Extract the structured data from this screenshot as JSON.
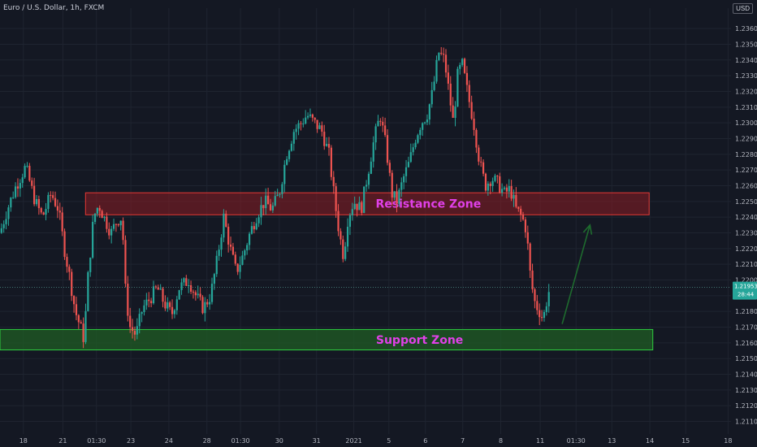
{
  "header": {
    "symbol": "Euro / U.S. Dollar, 1h, FXCM",
    "currency": "USD"
  },
  "colors": {
    "background": "#141823",
    "grid": "#1f2430",
    "up_candle": "#26a69a",
    "down_candle": "#ef5350",
    "resistance_fill": "#8b1e24",
    "resistance_border": "#e53935",
    "support_fill": "#1f5c24",
    "support_border": "#2ecc40",
    "zone_text": "#e040e8",
    "arrow": "#1e6b2e",
    "price_tag": "#26a69a"
  },
  "chart_data": {
    "type": "candlestick",
    "ylim": [
      1.2102,
      1.2373
    ],
    "y_ticks": [
      1.211,
      1.212,
      1.213,
      1.214,
      1.215,
      1.216,
      1.217,
      1.218,
      1.219,
      1.22,
      1.221,
      1.222,
      1.223,
      1.224,
      1.225,
      1.226,
      1.227,
      1.228,
      1.229,
      1.23,
      1.231,
      1.232,
      1.233,
      1.234,
      1.235,
      1.236
    ],
    "y_tick_labels": [
      "1.21100",
      "1.21200",
      "1.21300",
      "1.21400",
      "1.21500",
      "1.21600",
      "1.21700",
      "1.21800",
      "1.21900",
      "1.22000",
      "1.22100",
      "1.22200",
      "1.22300",
      "1.22400",
      "1.22500",
      "1.22600",
      "1.22700",
      "1.22800",
      "1.22900",
      "1.23000",
      "1.23100",
      "1.23200",
      "1.23300",
      "1.23400",
      "1.23500",
      "1.23600"
    ],
    "x_ticks": [
      {
        "label": "18",
        "frac": 0.032
      },
      {
        "label": "21",
        "frac": 0.086
      },
      {
        "label": "01:30",
        "frac": 0.132
      },
      {
        "label": "23",
        "frac": 0.179
      },
      {
        "label": "24",
        "frac": 0.231
      },
      {
        "label": "28",
        "frac": 0.283
      },
      {
        "label": "01:30",
        "frac": 0.329
      },
      {
        "label": "30",
        "frac": 0.382
      },
      {
        "label": "31",
        "frac": 0.433
      },
      {
        "label": "2021",
        "frac": 0.484
      },
      {
        "label": "5",
        "frac": 0.532
      },
      {
        "label": "6",
        "frac": 0.582
      },
      {
        "label": "7",
        "frac": 0.633
      },
      {
        "label": "8",
        "frac": 0.685
      },
      {
        "label": "11",
        "frac": 0.739
      },
      {
        "label": "01:30",
        "frac": 0.788
      },
      {
        "label": "13",
        "frac": 0.837
      },
      {
        "label": "14",
        "frac": 0.889
      },
      {
        "label": "15",
        "frac": 0.938
      },
      {
        "label": "18",
        "frac": 0.996
      }
    ],
    "path": [
      [
        0.0,
        1.223
      ],
      [
        0.01,
        1.2245
      ],
      [
        0.022,
        1.226
      ],
      [
        0.035,
        1.2272
      ],
      [
        0.048,
        1.225
      ],
      [
        0.058,
        1.224
      ],
      [
        0.07,
        1.2255
      ],
      [
        0.08,
        1.2245
      ],
      [
        0.088,
        1.222
      ],
      [
        0.096,
        1.22
      ],
      [
        0.103,
        1.218
      ],
      [
        0.11,
        1.217
      ],
      [
        0.115,
        1.2162
      ],
      [
        0.12,
        1.22
      ],
      [
        0.128,
        1.224
      ],
      [
        0.135,
        1.2248
      ],
      [
        0.142,
        1.224
      ],
      [
        0.152,
        1.223
      ],
      [
        0.16,
        1.2238
      ],
      [
        0.167,
        1.224
      ],
      [
        0.172,
        1.219
      ],
      [
        0.178,
        1.217
      ],
      [
        0.186,
        1.2165
      ],
      [
        0.195,
        1.2182
      ],
      [
        0.205,
        1.2188
      ],
      [
        0.215,
        1.2195
      ],
      [
        0.225,
        1.2185
      ],
      [
        0.235,
        1.2178
      ],
      [
        0.245,
        1.2195
      ],
      [
        0.258,
        1.22
      ],
      [
        0.268,
        1.219
      ],
      [
        0.278,
        1.2182
      ],
      [
        0.288,
        1.219
      ],
      [
        0.296,
        1.221
      ],
      [
        0.306,
        1.224
      ],
      [
        0.315,
        1.222
      ],
      [
        0.323,
        1.2205
      ],
      [
        0.332,
        1.2215
      ],
      [
        0.342,
        1.223
      ],
      [
        0.352,
        1.2242
      ],
      [
        0.362,
        1.225
      ],
      [
        0.372,
        1.2245
      ],
      [
        0.382,
        1.2255
      ],
      [
        0.392,
        1.228
      ],
      [
        0.402,
        1.2295
      ],
      [
        0.412,
        1.23
      ],
      [
        0.42,
        1.2305
      ],
      [
        0.43,
        1.23
      ],
      [
        0.44,
        1.2295
      ],
      [
        0.45,
        1.228
      ],
      [
        0.458,
        1.225
      ],
      [
        0.464,
        1.223
      ],
      [
        0.47,
        1.2215
      ],
      [
        0.476,
        1.224
      ],
      [
        0.484,
        1.225
      ],
      [
        0.494,
        1.2245
      ],
      [
        0.504,
        1.227
      ],
      [
        0.512,
        1.229
      ],
      [
        0.52,
        1.2305
      ],
      [
        0.528,
        1.2285
      ],
      [
        0.536,
        1.2255
      ],
      [
        0.543,
        1.225
      ],
      [
        0.552,
        1.2265
      ],
      [
        0.56,
        1.2275
      ],
      [
        0.568,
        1.229
      ],
      [
        0.576,
        1.23
      ],
      [
        0.584,
        1.2305
      ],
      [
        0.592,
        1.232
      ],
      [
        0.6,
        1.2345
      ],
      [
        0.608,
        1.234
      ],
      [
        0.614,
        1.232
      ],
      [
        0.62,
        1.23
      ],
      [
        0.626,
        1.233
      ],
      [
        0.632,
        1.2338
      ],
      [
        0.64,
        1.2318
      ],
      [
        0.648,
        1.23
      ],
      [
        0.656,
        1.2275
      ],
      [
        0.664,
        1.226
      ],
      [
        0.672,
        1.2265
      ],
      [
        0.68,
        1.2262
      ],
      [
        0.69,
        1.2255
      ],
      [
        0.698,
        1.2258
      ],
      [
        0.706,
        1.2245
      ],
      [
        0.714,
        1.224
      ],
      [
        0.72,
        1.2232
      ],
      [
        0.726,
        1.22
      ],
      [
        0.732,
        1.2185
      ],
      [
        0.738,
        1.218
      ],
      [
        0.743,
        1.2175
      ],
      [
        0.747,
        1.2185
      ],
      [
        0.752,
        1.2195
      ]
    ],
    "zones": [
      {
        "name": "Resistance Zone",
        "low": 1.22415,
        "high": 1.22555,
        "x_start": 0.117,
        "x_end": 0.888
      },
      {
        "name": "Support Zone",
        "low": 1.21555,
        "high": 1.21685,
        "x_start": 0.0,
        "x_end": 0.893
      }
    ],
    "arrow": {
      "from": [
        0.769,
        1.2172
      ],
      "to": [
        0.807,
        1.2235
      ]
    },
    "last_price": 1.21953,
    "last_price_label": "1.21953",
    "last_price_sub": "28:44"
  }
}
